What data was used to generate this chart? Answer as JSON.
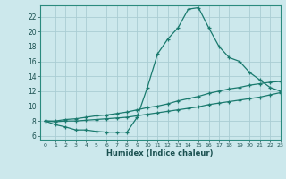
{
  "xlabel": "Humidex (Indice chaleur)",
  "background_color": "#cce8ec",
  "line_color": "#1a7a6e",
  "grid_color": "#aacdd4",
  "xlim": [
    -0.5,
    23
  ],
  "ylim": [
    5.5,
    23.5
  ],
  "xticks": [
    0,
    1,
    2,
    3,
    4,
    5,
    6,
    7,
    8,
    9,
    10,
    11,
    12,
    13,
    14,
    15,
    16,
    17,
    18,
    19,
    20,
    21,
    22,
    23
  ],
  "yticks": [
    6,
    8,
    10,
    12,
    14,
    16,
    18,
    20,
    22
  ],
  "line1_x": [
    0,
    1,
    2,
    3,
    4,
    5,
    6,
    7,
    8,
    9,
    10,
    11,
    12,
    13,
    14,
    15,
    16,
    17,
    18,
    19,
    20,
    21,
    22,
    23
  ],
  "line1_y": [
    8.0,
    7.5,
    7.2,
    6.8,
    6.8,
    6.6,
    6.5,
    6.5,
    6.5,
    8.5,
    12.5,
    17.0,
    19.0,
    20.5,
    23.0,
    23.2,
    20.5,
    18.0,
    16.5,
    16.0,
    14.5,
    13.5,
    12.5,
    12.0
  ],
  "line2_x": [
    0,
    1,
    2,
    3,
    4,
    5,
    6,
    7,
    8,
    9,
    10,
    11,
    12,
    13,
    14,
    15,
    16,
    17,
    18,
    19,
    20,
    21,
    22,
    23
  ],
  "line2_y": [
    8.0,
    8.0,
    8.2,
    8.3,
    8.5,
    8.7,
    8.8,
    9.0,
    9.2,
    9.5,
    9.8,
    10.0,
    10.3,
    10.7,
    11.0,
    11.3,
    11.7,
    12.0,
    12.3,
    12.5,
    12.8,
    13.0,
    13.2,
    13.3
  ],
  "line3_x": [
    0,
    1,
    2,
    3,
    4,
    5,
    6,
    7,
    8,
    9,
    10,
    11,
    12,
    13,
    14,
    15,
    16,
    17,
    18,
    19,
    20,
    21,
    22,
    23
  ],
  "line3_y": [
    8.0,
    7.9,
    8.0,
    8.0,
    8.1,
    8.2,
    8.3,
    8.4,
    8.5,
    8.7,
    8.9,
    9.1,
    9.3,
    9.5,
    9.7,
    9.9,
    10.2,
    10.4,
    10.6,
    10.8,
    11.0,
    11.2,
    11.5,
    11.8
  ]
}
